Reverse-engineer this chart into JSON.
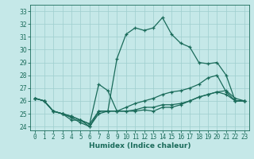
{
  "title": "",
  "xlabel": "Humidex (Indice chaleur)",
  "xlim_min": -0.5,
  "xlim_max": 23.5,
  "ylim_min": 23.7,
  "ylim_max": 33.5,
  "xticks": [
    0,
    1,
    2,
    3,
    4,
    5,
    6,
    7,
    8,
    9,
    10,
    11,
    12,
    13,
    14,
    15,
    16,
    17,
    18,
    19,
    20,
    21,
    22,
    23
  ],
  "yticks": [
    24,
    25,
    26,
    27,
    28,
    29,
    30,
    31,
    32,
    33
  ],
  "bg_color": "#c5e8e8",
  "line_color": "#1a6b5a",
  "grid_color": "#9ecece",
  "curve1_x": [
    0,
    1,
    2,
    3,
    4,
    5,
    6,
    7,
    8,
    9,
    10,
    11,
    12,
    13,
    14,
    15,
    16,
    17,
    18,
    19,
    20,
    21,
    22,
    23
  ],
  "curve1_y": [
    26.2,
    26.0,
    25.2,
    25.0,
    24.5,
    24.5,
    24.0,
    25.2,
    25.2,
    29.3,
    31.2,
    31.7,
    31.5,
    31.7,
    32.5,
    31.2,
    30.5,
    30.2,
    29.0,
    28.9,
    29.0,
    28.0,
    26.0,
    26.0
  ],
  "curve2_x": [
    0,
    1,
    2,
    3,
    4,
    5,
    6,
    7,
    8,
    9,
    10,
    11,
    12,
    13,
    14,
    15,
    16,
    17,
    18,
    19,
    20,
    21,
    22,
    23
  ],
  "curve2_y": [
    26.2,
    26.0,
    25.2,
    25.0,
    24.8,
    24.5,
    24.2,
    27.3,
    26.8,
    25.2,
    25.2,
    25.2,
    25.3,
    25.2,
    25.5,
    25.5,
    25.7,
    26.0,
    26.3,
    26.5,
    26.7,
    26.5,
    26.0,
    26.0
  ],
  "curve3_x": [
    0,
    1,
    2,
    3,
    4,
    5,
    6,
    7,
    8,
    9,
    10,
    11,
    12,
    13,
    14,
    15,
    16,
    17,
    18,
    19,
    20,
    21,
    22,
    23
  ],
  "curve3_y": [
    26.2,
    26.0,
    25.2,
    25.0,
    24.8,
    24.5,
    24.2,
    25.2,
    25.2,
    25.2,
    25.2,
    25.3,
    25.5,
    25.5,
    25.7,
    25.7,
    25.8,
    26.0,
    26.3,
    26.5,
    26.7,
    26.8,
    26.2,
    26.0
  ],
  "curve4_x": [
    0,
    1,
    2,
    3,
    4,
    5,
    6,
    7,
    8,
    9,
    10,
    11,
    12,
    13,
    14,
    15,
    16,
    17,
    18,
    19,
    20,
    21,
    22,
    23
  ],
  "curve4_y": [
    26.2,
    26.0,
    25.2,
    25.0,
    24.7,
    24.3,
    24.0,
    25.0,
    25.2,
    25.2,
    25.5,
    25.8,
    26.0,
    26.2,
    26.5,
    26.7,
    26.8,
    27.0,
    27.3,
    27.8,
    28.0,
    26.7,
    26.0,
    26.0
  ],
  "tick_fontsize": 5.5,
  "xlabel_fontsize": 6.5,
  "lw": 0.9,
  "marker_size": 3.0
}
